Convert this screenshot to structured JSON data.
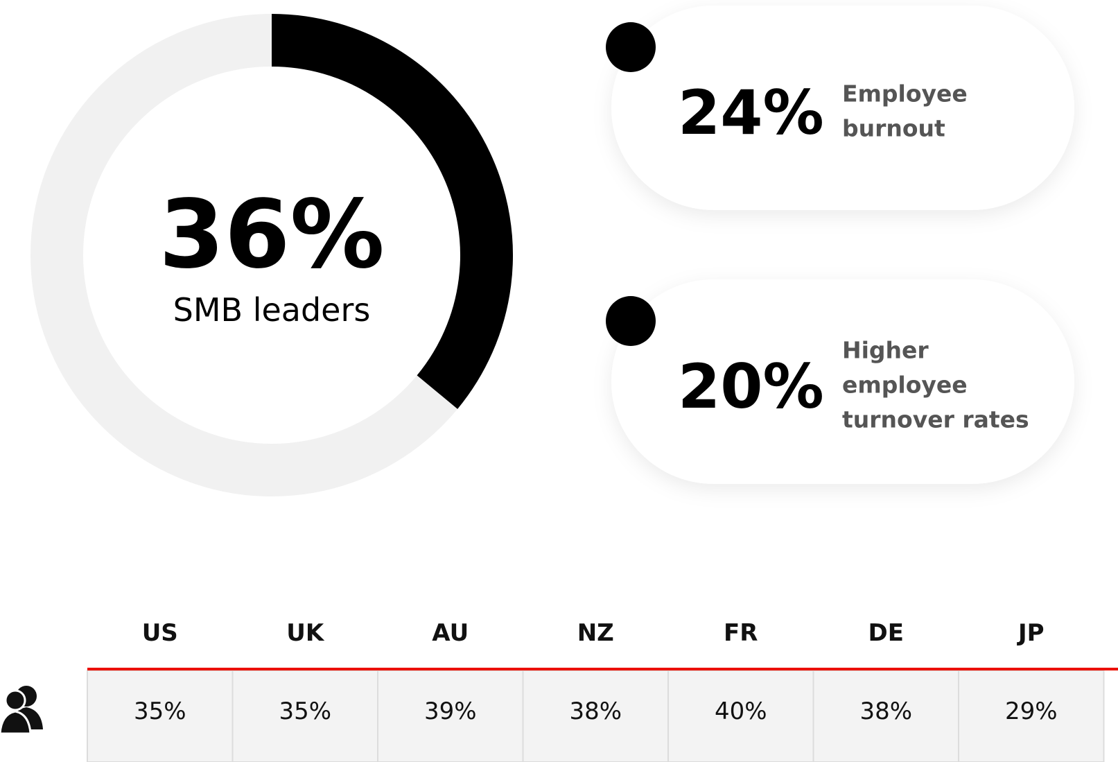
{
  "chart_data": {
    "type": "donut",
    "values": [
      36
    ],
    "value_labels": [
      "36%"
    ],
    "label": "SMB leaders",
    "color": "#000000",
    "track_color": "#f1f1f1"
  },
  "cards": [
    {
      "value": "24%",
      "lines": [
        "Employee",
        "burnout"
      ]
    },
    {
      "value": "20%",
      "lines": [
        "Higher",
        "employee",
        "turnover rates"
      ]
    }
  ],
  "table": {
    "header": [
      "US",
      "UK",
      "AU",
      "NZ",
      "FR",
      "DE",
      "JP"
    ],
    "rows": [
      [
        "35%",
        "35%",
        "39%",
        "38%",
        "40%",
        "38%",
        "29%"
      ]
    ]
  }
}
